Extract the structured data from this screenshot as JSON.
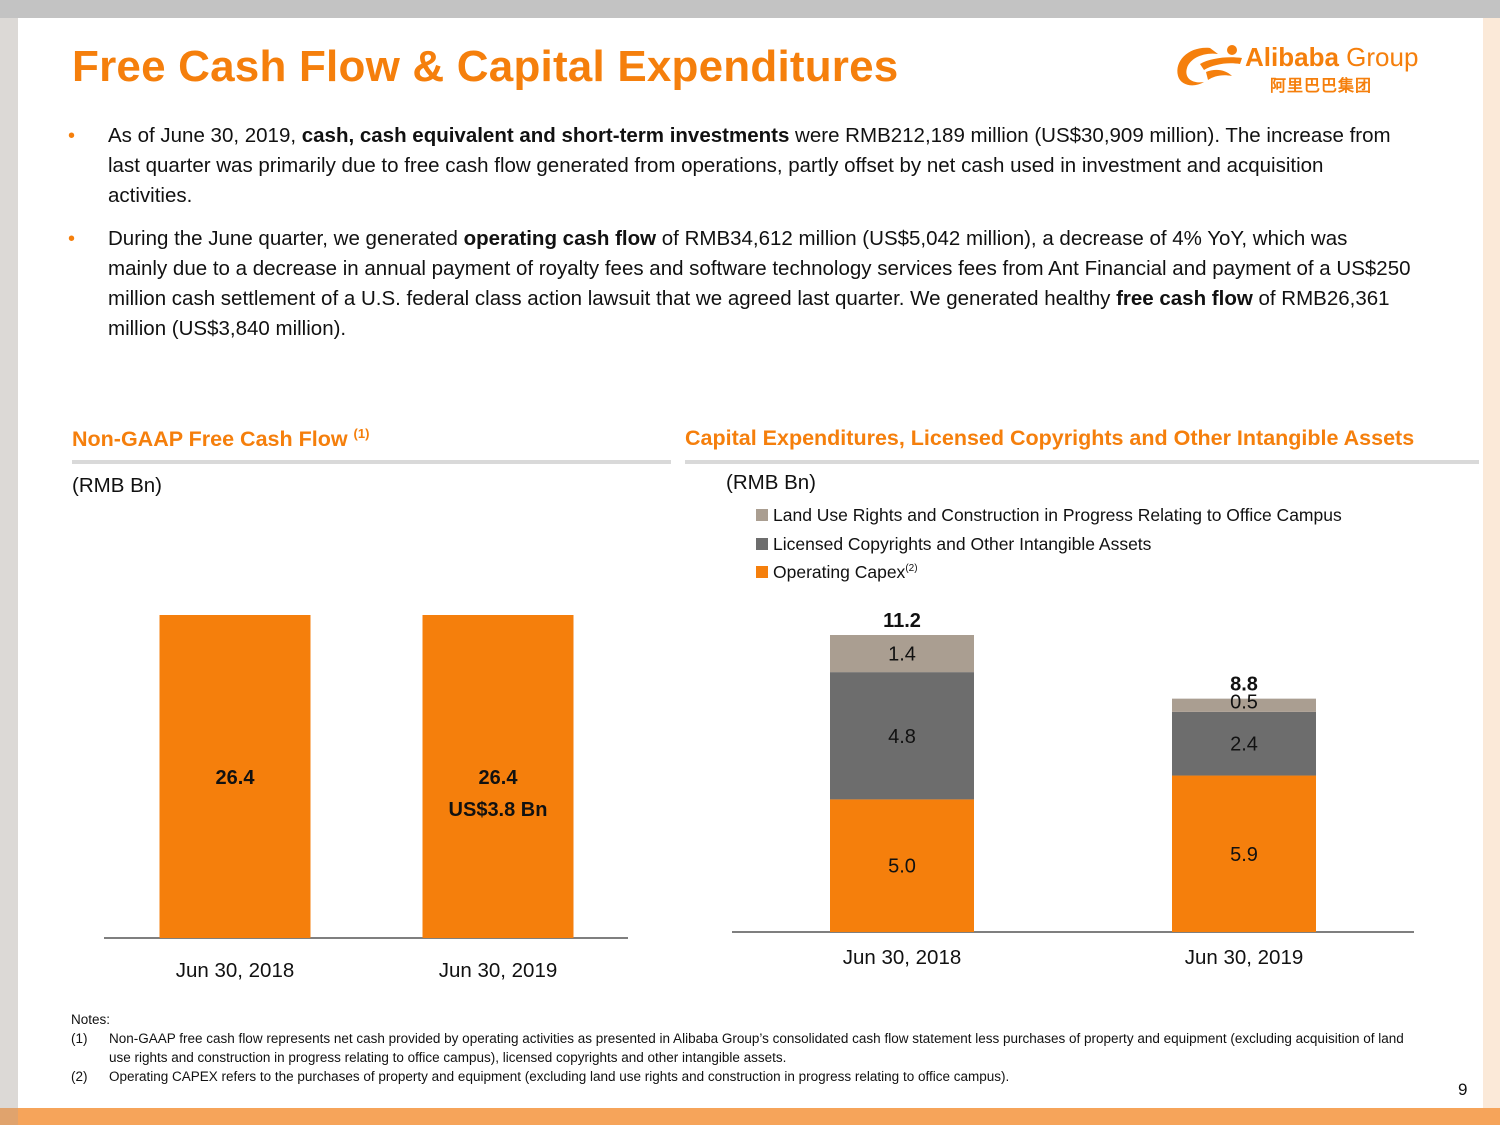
{
  "slide": {
    "title": "Free Cash Flow & Capital Expenditures",
    "page_number": "9",
    "accent_color": "#f57f0c"
  },
  "logo": {
    "brand_bold": "Alibaba",
    "brand_light": " Group",
    "chinese": "阿里巴巴集团"
  },
  "bullets": [
    {
      "pre": "As of June 30, 2019, ",
      "bold": "cash, cash equivalent and short-term investments",
      "post": " were RMB212,189 million (US$30,909 million). The increase from last quarter was primarily due to free cash flow generated from operations, partly offset by net cash used in investment and acquisition activities."
    },
    {
      "pre": "During the June quarter, we generated ",
      "bold": "operating cash flow",
      "mid": " of RMB34,612 million (US$5,042 million), a decrease of 4% YoY, which was mainly due to a decrease in annual payment of royalty fees and software technology services fees from Ant Financial and payment of a US$250 million cash settlement of a U.S. federal class action lawsuit that we agreed last quarter. We generated healthy ",
      "bold2": "free cash flow",
      "post": " of RMB26,361 million (US$3,840 million)."
    }
  ],
  "left_section": {
    "title": "Non-GAAP Free Cash Flow ",
    "title_sup": "(1)",
    "unit": "(RMB Bn)"
  },
  "right_section": {
    "title": "Capital Expenditures, Licensed Copyrights and Other Intangible Assets",
    "unit": "(RMB Bn)"
  },
  "chart_data": [
    {
      "type": "bar",
      "title": "Non-GAAP Free Cash Flow",
      "ylabel": "RMB Bn",
      "categories": [
        "Jun 30, 2018",
        "Jun 30, 2019"
      ],
      "values": [
        26.4,
        26.4
      ],
      "data_labels": [
        "26.4",
        "26.4"
      ],
      "extra_labels": [
        "",
        "US$3.8 Bn"
      ],
      "color": "#f57f0c",
      "ylim": [
        0,
        26.4
      ]
    },
    {
      "type": "bar",
      "stacked": true,
      "title": "Capital Expenditures, Licensed Copyrights and Other Intangible Assets",
      "ylabel": "RMB Bn",
      "categories": [
        "Jun 30, 2018",
        "Jun 30, 2019"
      ],
      "series": [
        {
          "name": "Operating Capex",
          "name_sup": "(2)",
          "values": [
            5.0,
            5.9
          ],
          "labels": [
            "5.0",
            "5.9"
          ],
          "color": "#f57f0c"
        },
        {
          "name": "Licensed Copyrights and Other Intangible Assets",
          "values": [
            4.8,
            2.4
          ],
          "labels": [
            "4.8",
            "2.4"
          ],
          "color": "#6d6d6d"
        },
        {
          "name": "Land Use Rights and Construction in Progress Relating to Office Campus",
          "values": [
            1.4,
            0.5
          ],
          "labels": [
            "1.4",
            "0.5"
          ],
          "color": "#aa9e91"
        }
      ],
      "totals": [
        "11.2",
        "8.8"
      ],
      "legend_position": "top-left",
      "ylim": [
        0,
        11.2
      ]
    }
  ],
  "notes": {
    "heading": "Notes:",
    "items": [
      {
        "num": "(1)",
        "text": "Non-GAAP free cash flow represents net cash provided by operating activities as presented in Alibaba Group’s consolidated cash flow statement less purchases of property and equipment (excluding acquisition of land use rights and construction in progress relating to office campus), licensed copyrights and other intangible assets."
      },
      {
        "num": "(2)",
        "text": "Operating CAPEX refers to the purchases of property and equipment (excluding land use rights and construction in progress relating to office campus)."
      }
    ]
  }
}
